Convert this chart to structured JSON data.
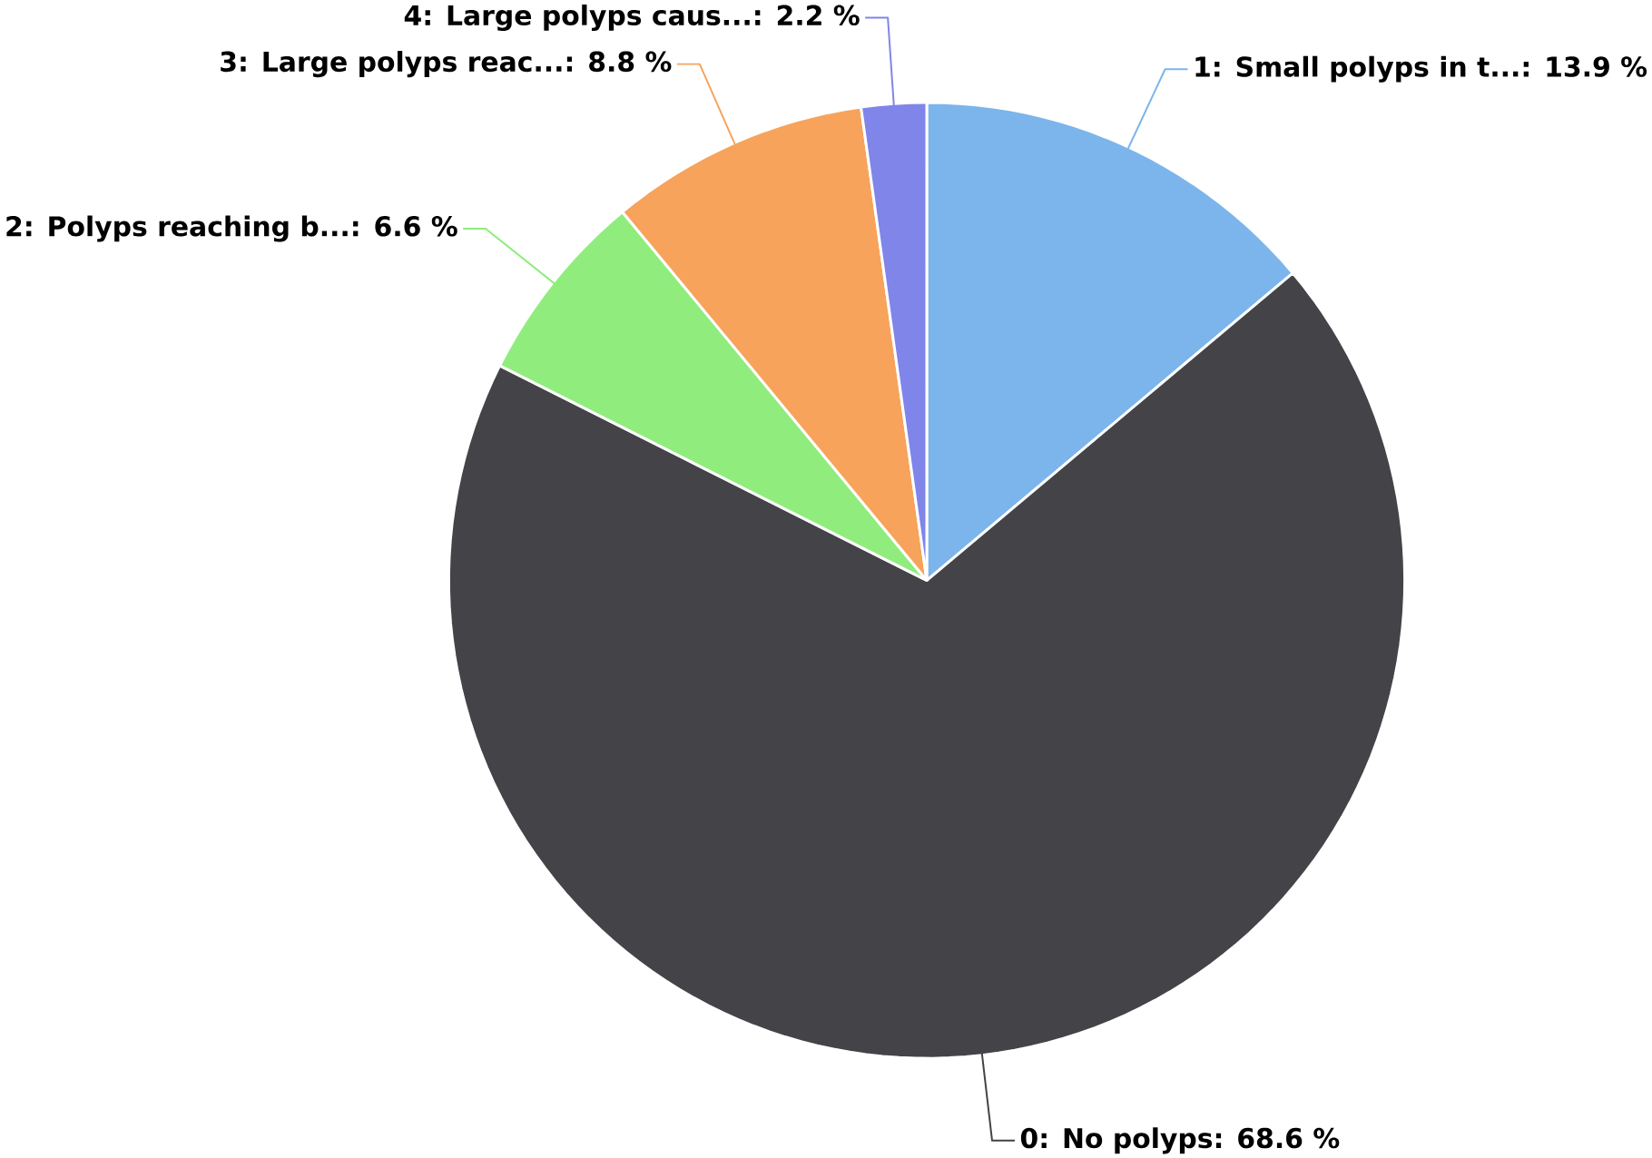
{
  "chart_data": {
    "type": "pie",
    "categories": [
      "1: Small polyps in t...: 13.9 %",
      "0: No polyps: 68.6 %",
      "2: Polyps reaching b...: 6.6 %",
      "3: Large polyps reac...: 8.8 %",
      "4: Large polyps caus...: 2.2 %"
    ],
    "values": [
      13.9,
      68.6,
      6.6,
      8.8,
      2.2
    ],
    "colors": [
      "#7cb5ec",
      "#434348",
      "#90ed7d",
      "#f7a35c",
      "#8085e9"
    ]
  }
}
